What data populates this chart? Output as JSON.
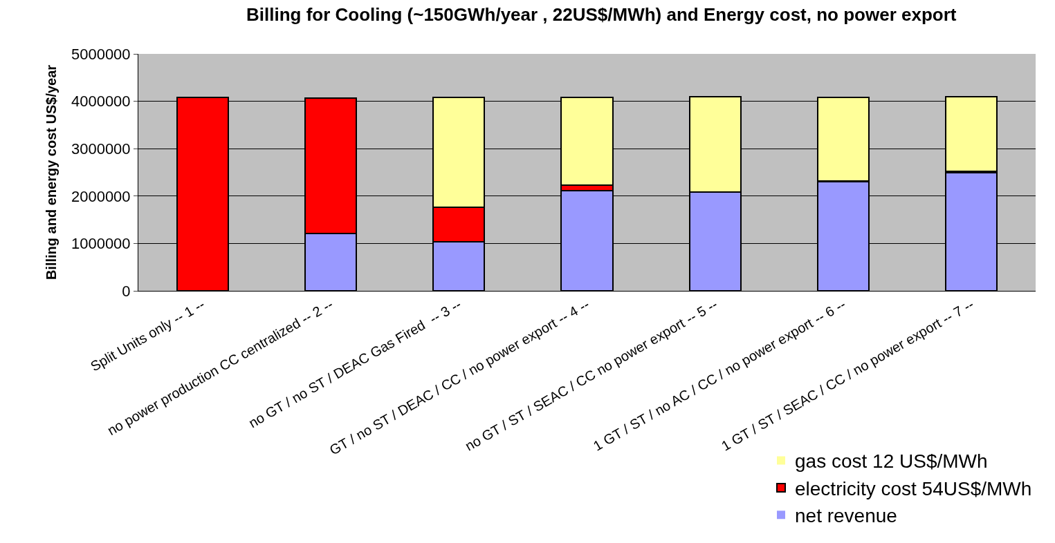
{
  "chart_data": {
    "type": "bar",
    "stacked": true,
    "title": "Billing for Cooling (~150GWh/year , 22US$/MWh) and Energy cost, no power export",
    "ylabel": "Billing and energy cost US$/year",
    "categories": [
      "Split Units only -- 1 --",
      "no power production CC centralized -- 2 --",
      "no GT / no ST / DEAC Gas Fired  -- 3 --",
      "GT / no ST / DEAC / CC / no power export -- 4 --",
      "no GT / ST / SEAC / CC no power export -- 5 --",
      "1 GT / ST / no AC / CC / no power export -- 6 --",
      "1 GT / ST / SEAC / CC / no power export -- 7 --"
    ],
    "series": [
      {
        "name": "net revenue",
        "color": "#9999ff",
        "values": [
          0,
          1210000,
          1030000,
          2110000,
          2080000,
          2300000,
          2500000
        ]
      },
      {
        "name": "electricity cost 54US$/MWh",
        "color": "#ff0000",
        "values": [
          4080000,
          2860000,
          730000,
          120000,
          10000,
          20000,
          20000
        ]
      },
      {
        "name": "gas cost 12 US$/MWh",
        "color": "#ffff99",
        "values": [
          0,
          0,
          2320000,
          1850000,
          2000000,
          1760000,
          1570000
        ]
      }
    ],
    "ylim": [
      0,
      5000000
    ],
    "yticks": [
      0,
      1000000,
      2000000,
      3000000,
      4000000,
      5000000
    ],
    "grid": "y",
    "legend": "bottom right"
  }
}
